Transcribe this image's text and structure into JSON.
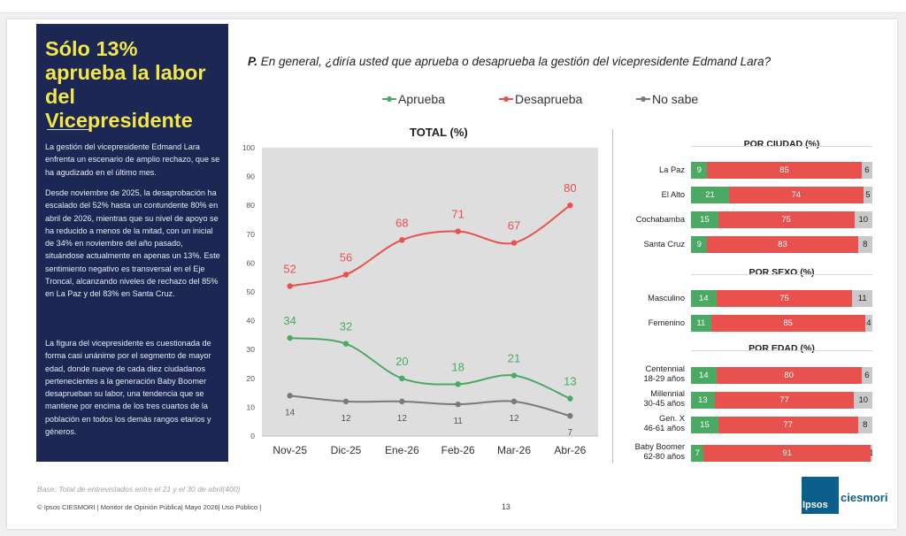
{
  "panel": {
    "title": "Sólo 13% aprueba la labor del Vicepresidente",
    "paragraphs": [
      "La gestión del vicepresidente Edmand Lara enfrenta un escenario de amplio rechazo, que se ha agudizado en el último mes.",
      "Desde noviembre de 2025, la desaprobación ha escalado del 52% hasta un contundente 80% en abril de 2026, mientras que su nivel de apoyo se ha reducido a menos de la mitad, con un inicial de 34% en noviembre del año pasado, situándose actualmente en apenas un 13%. Este sentimiento negativo es transversal en el Eje Troncal, alcanzando niveles de rechazo del 85% en La Paz y del 83% en Santa Cruz.",
      "La figura del vicepresidente es cuestionada de forma casi unánime por el segmento de mayor edad, donde nueve de cada diez ciudadanos pertenecientes a la generación Baby Boomer desaprueban su labor, una tendencia que se mantiene por encima de los tres cuartos de la población en todos los demás rangos etarios y géneros."
    ]
  },
  "question": {
    "prefix": "P.",
    "text": "En general, ¿diría usted que aprueba o desaprueba la gestión del vicepresidente Edmand Lara?"
  },
  "colors": {
    "aprueba": "#4aaa63",
    "desaprueba": "#e8514d",
    "no_sabe": "#7a7a7a",
    "panel_bg": "#1c2754",
    "title_yellow": "#f2e64b"
  },
  "chart_data": [
    {
      "type": "line",
      "title": "TOTAL (%)",
      "categories": [
        "Nov-25",
        "Dic-25",
        "Ene-26",
        "Feb-26",
        "Mar-26",
        "Abr-26"
      ],
      "series": [
        {
          "name": "Aprueba",
          "values": [
            34,
            32,
            20,
            18,
            21,
            13
          ]
        },
        {
          "name": "Desaprueba",
          "values": [
            52,
            56,
            68,
            71,
            67,
            80
          ]
        },
        {
          "name": "No sabe",
          "values": [
            14,
            12,
            12,
            11,
            12,
            7
          ]
        }
      ],
      "ylim": [
        0,
        100
      ],
      "yticks": [
        0,
        10,
        20,
        30,
        40,
        50,
        60,
        70,
        80,
        90,
        100
      ],
      "legend": "top"
    },
    {
      "type": "bar",
      "title": "POR CIUDAD (%)",
      "stacked": true,
      "categories": [
        "La Paz",
        "El Alto",
        "Cochabamba",
        "Santa Cruz"
      ],
      "series": [
        {
          "name": "Aprueba",
          "values": [
            9,
            21,
            15,
            9
          ]
        },
        {
          "name": "Desaprueba",
          "values": [
            85,
            74,
            75,
            83
          ]
        },
        {
          "name": "No sabe",
          "values": [
            6,
            5,
            10,
            8
          ]
        }
      ]
    },
    {
      "type": "bar",
      "title": "POR SEXO (%)",
      "stacked": true,
      "categories": [
        "Masculino",
        "Femenino"
      ],
      "series": [
        {
          "name": "Aprueba",
          "values": [
            14,
            11
          ]
        },
        {
          "name": "Desaprueba",
          "values": [
            75,
            85
          ]
        },
        {
          "name": "No sabe",
          "values": [
            11,
            4
          ]
        }
      ]
    },
    {
      "type": "bar",
      "title": "POR EDAD (%)",
      "stacked": true,
      "categories": [
        "Centennial\n18-29 años",
        "Millennial\n30-45 años",
        "Gen. X\n46-61 años",
        "Baby Boomer\n62-80 años"
      ],
      "series": [
        {
          "name": "Aprueba",
          "values": [
            14,
            13,
            15,
            7
          ]
        },
        {
          "name": "Desaprueba",
          "values": [
            80,
            77,
            77,
            91
          ]
        },
        {
          "name": "No sabe",
          "values": [
            6,
            10,
            8,
            1
          ]
        }
      ]
    }
  ],
  "base_note": "Base: Total de entrevistados entre el 21 y el 30 de abril(400)",
  "footer": "© Ipsos CIESMORI | Monitor de Opinión Pública| Mayo 2026| Uso Público |",
  "page_number": "13",
  "logo": {
    "left": "Ipsos",
    "right": "ciesmori"
  }
}
